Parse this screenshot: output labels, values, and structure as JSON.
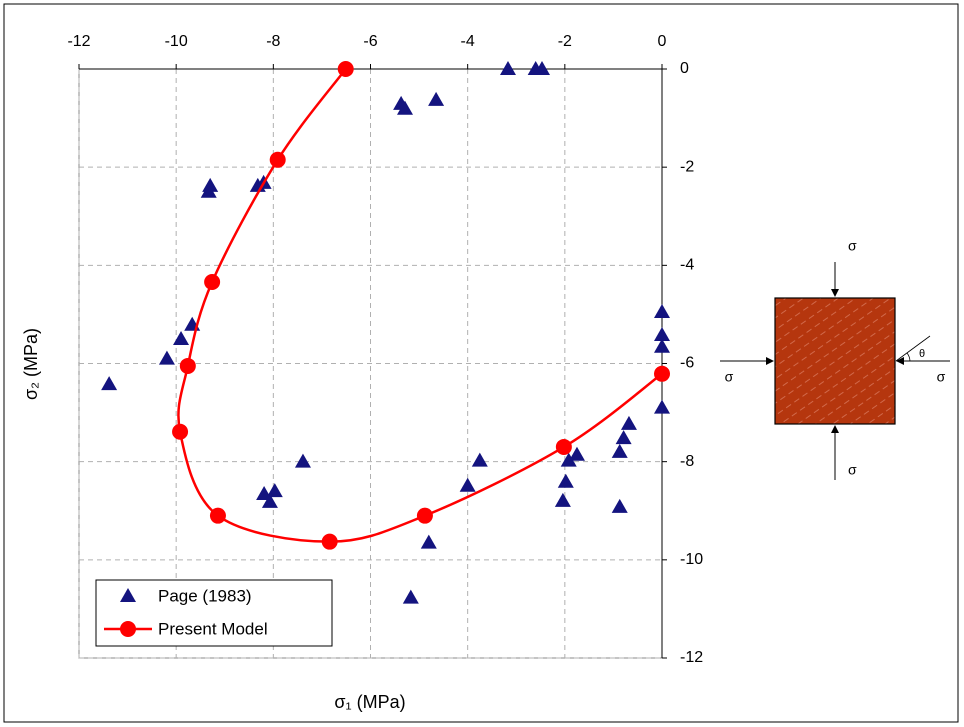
{
  "chart_data": {
    "type": "scatter",
    "x_label": "σ₁ (MPa)",
    "y_label": "σ₂ (MPa)",
    "xlim": [
      -12,
      0
    ],
    "ylim": [
      -12,
      0
    ],
    "xticks": [
      -12,
      -10,
      -8,
      -6,
      -4,
      -2,
      0
    ],
    "yticks": [
      0,
      -2,
      -4,
      -6,
      -8,
      -10,
      -12
    ],
    "grid": true,
    "legend": "lower left",
    "series": [
      {
        "name": "Page (1983)",
        "color": "#14147f",
        "marker": "triangle",
        "line": false,
        "x": [
          -3.17,
          -2.6,
          -2.47,
          -5.37,
          -5.29,
          -4.65,
          -8.32,
          -8.2,
          -9.3,
          -9.33,
          -9.67,
          -9.9,
          -10.19,
          -11.38,
          -7.39,
          -8.19,
          -7.97,
          -8.07,
          -3.75,
          -4.0,
          -4.8,
          -5.17,
          0,
          0,
          0,
          0,
          -1.75,
          -1.92,
          -0.68,
          -0.79,
          -0.87,
          -2.04,
          -1.98,
          -0.87
        ],
        "values": [
          0,
          0,
          0,
          -0.71,
          -0.81,
          -0.63,
          -2.38,
          -2.32,
          -2.38,
          -2.5,
          -5.21,
          -5.5,
          -5.9,
          -6.42,
          -8.0,
          -8.66,
          -8.6,
          -8.82,
          -7.98,
          -8.49,
          -9.65,
          -10.77,
          -4.95,
          -5.42,
          -5.66,
          -6.9,
          -7.86,
          -7.98,
          -7.23,
          -7.52,
          -7.8,
          -8.8,
          -8.41,
          -8.92
        ]
      },
      {
        "name": "Present Model",
        "color": "#ff0000",
        "marker": "circle",
        "line": true,
        "x": [
          -6.51,
          -7.91,
          -9.26,
          -9.76,
          -9.92,
          -9.14,
          -6.84,
          -4.88,
          -2.02,
          0
        ],
        "values": [
          0,
          -1.85,
          -4.34,
          -6.05,
          -7.39,
          -9.1,
          -9.63,
          -9.1,
          -7.7,
          -6.21
        ]
      }
    ],
    "diagram": {
      "loads": [
        "σ",
        "σ",
        "σ",
        "σ"
      ],
      "angle": "θ"
    }
  }
}
